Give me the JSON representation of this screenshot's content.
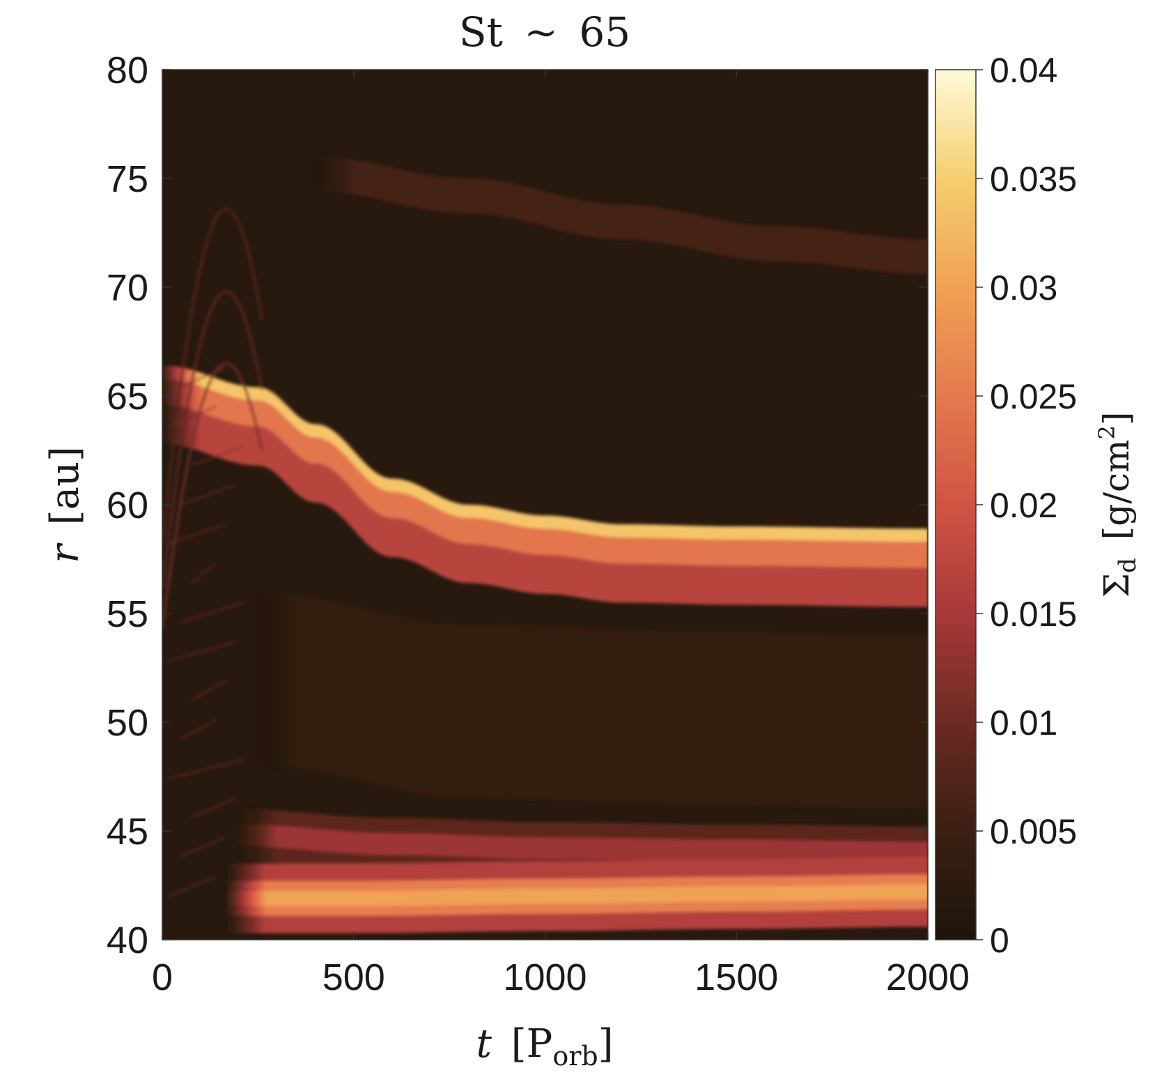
{
  "chart_data": {
    "type": "heatmap",
    "title": {
      "base": "St",
      "op": "∼",
      "value": "65"
    },
    "xlabel": {
      "symbol": "t",
      "unit_base": "P",
      "unit_sub": "orb"
    },
    "ylabel": {
      "symbol": "r",
      "unit": "au"
    },
    "colorbar_label": {
      "symbol": "Σ",
      "sub": "d",
      "unit": "g/cm",
      "unit_exp": "2"
    },
    "xlim": [
      0,
      2000
    ],
    "ylim": [
      40,
      80
    ],
    "clim": [
      0,
      0.04
    ],
    "x_ticks": [
      0,
      500,
      1000,
      1500,
      2000
    ],
    "y_ticks": [
      40,
      45,
      50,
      55,
      60,
      65,
      70,
      75,
      80
    ],
    "colorbar_ticks": [
      "0",
      "0.005",
      "0.01",
      "0.015",
      "0.02",
      "0.025",
      "0.03",
      "0.035",
      "0.04"
    ],
    "colormap": [
      "#1c150b",
      "#3a1f12",
      "#6b2a22",
      "#a8393a",
      "#d05443",
      "#e57a4e",
      "#f0a254",
      "#f6ce70",
      "#fffbd8"
    ],
    "features": [
      {
        "name": "outer dust ring",
        "t": [
          0,
          250,
          400,
          600,
          800,
          1000,
          1200,
          1500,
          2000
        ],
        "r": [
          66,
          65,
          63.3,
          60.8,
          59.6,
          59.1,
          58.7,
          58.6,
          58.5
        ],
        "peak": 0.034
      },
      {
        "name": "inner dust ring",
        "t": [
          170,
          500,
          1000,
          1500,
          2000
        ],
        "r": [
          41.9,
          41.9,
          42.0,
          42.1,
          42.2
        ],
        "peak": 0.03
      },
      {
        "name": "secondary inner ring",
        "t": [
          200,
          600,
          1000,
          1500,
          2000
        ],
        "r": [
          44.8,
          44.4,
          44.2,
          44.1,
          44.0
        ],
        "peak": 0.014
      },
      {
        "name": "faint outer arc",
        "t": [
          400,
          800,
          1200,
          1600,
          2000
        ],
        "r": [
          75.2,
          74.2,
          73.0,
          72.0,
          71.4
        ],
        "peak": 0.006
      }
    ]
  }
}
